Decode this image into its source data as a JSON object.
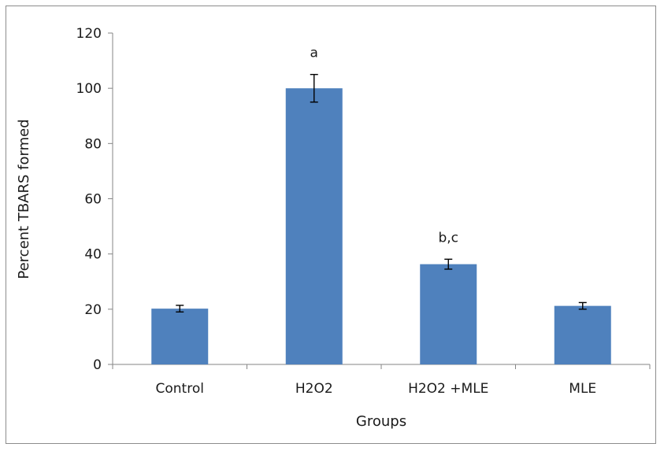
{
  "chart_data": {
    "type": "bar",
    "categories": [
      "Control",
      "H2O2",
      "H2O2 +MLE",
      "MLE"
    ],
    "values": [
      20.2,
      100,
      36.3,
      21.2
    ],
    "errors": [
      1.2,
      5,
      1.8,
      1.2
    ],
    "annotations": [
      "",
      "a",
      "b,c",
      ""
    ],
    "title": "",
    "xlabel": "Groups",
    "ylabel": "Percent TBARS formed",
    "ylim": [
      0,
      120
    ],
    "yticks": [
      0,
      20,
      40,
      60,
      80,
      100,
      120
    ],
    "grid": false,
    "bar_color": "#4f81bd",
    "axis_color": "#868686"
  }
}
